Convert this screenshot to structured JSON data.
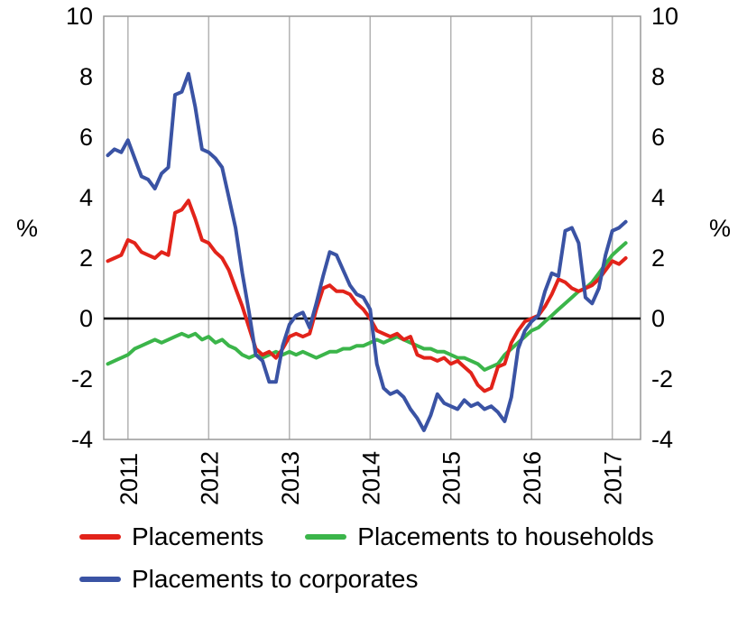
{
  "chart_data": {
    "type": "line",
    "title": "",
    "ylabel_left": "%",
    "ylabel_right": "%",
    "xlim": [
      2010.7,
      2017.35
    ],
    "ylim": [
      -4,
      10
    ],
    "y_ticks": [
      -4,
      -2,
      0,
      2,
      4,
      6,
      8,
      10
    ],
    "x_ticks": [
      2011,
      2012,
      2013,
      2014,
      2015,
      2016,
      2017
    ],
    "x_tick_labels": [
      "2011",
      "2012",
      "2013",
      "2014",
      "2015",
      "2016",
      "2017"
    ],
    "grid": "vertical-year-gridlines",
    "zero_line": true,
    "legend_position": "bottom-left",
    "x_start": 2010.75,
    "x_step": 0.0833333,
    "series": [
      {
        "name": "Placements",
        "color": "#e2231a",
        "values": [
          1.9,
          2.0,
          2.1,
          2.6,
          2.5,
          2.2,
          2.1,
          2.0,
          2.2,
          2.1,
          3.5,
          3.6,
          3.9,
          3.3,
          2.6,
          2.5,
          2.2,
          2.0,
          1.6,
          1.0,
          0.4,
          -0.3,
          -1.0,
          -1.2,
          -1.1,
          -1.3,
          -1.0,
          -0.6,
          -0.5,
          -0.6,
          -0.5,
          0.3,
          1.0,
          1.1,
          0.9,
          0.9,
          0.8,
          0.5,
          0.3,
          0.0,
          -0.4,
          -0.5,
          -0.6,
          -0.5,
          -0.7,
          -0.6,
          -1.2,
          -1.3,
          -1.3,
          -1.4,
          -1.3,
          -1.5,
          -1.4,
          -1.6,
          -1.8,
          -2.2,
          -2.4,
          -2.3,
          -1.6,
          -1.5,
          -0.8,
          -0.4,
          -0.1,
          0.0,
          0.1,
          0.4,
          0.8,
          1.3,
          1.2,
          1.0,
          0.9,
          1.0,
          1.1,
          1.3,
          1.6,
          1.9,
          1.8,
          2.0
        ]
      },
      {
        "name": "Placements to households",
        "color": "#3bb54a",
        "values": [
          -1.5,
          -1.4,
          -1.3,
          -1.2,
          -1.0,
          -0.9,
          -0.8,
          -0.7,
          -0.8,
          -0.7,
          -0.6,
          -0.5,
          -0.6,
          -0.5,
          -0.7,
          -0.6,
          -0.8,
          -0.7,
          -0.9,
          -1.0,
          -1.2,
          -1.3,
          -1.2,
          -1.3,
          -1.2,
          -1.1,
          -1.2,
          -1.1,
          -1.2,
          -1.1,
          -1.2,
          -1.3,
          -1.2,
          -1.1,
          -1.1,
          -1.0,
          -1.0,
          -0.9,
          -0.9,
          -0.8,
          -0.7,
          -0.8,
          -0.7,
          -0.6,
          -0.7,
          -0.8,
          -0.9,
          -1.0,
          -1.0,
          -1.1,
          -1.1,
          -1.2,
          -1.3,
          -1.3,
          -1.4,
          -1.5,
          -1.7,
          -1.6,
          -1.5,
          -1.2,
          -1.0,
          -0.8,
          -0.6,
          -0.4,
          -0.3,
          -0.1,
          0.1,
          0.3,
          0.5,
          0.7,
          0.9,
          1.0,
          1.2,
          1.5,
          1.8,
          2.1,
          2.3,
          2.5
        ]
      },
      {
        "name": "Placements to corporates",
        "color": "#3a53a4",
        "values": [
          5.4,
          5.6,
          5.5,
          5.9,
          5.3,
          4.7,
          4.6,
          4.3,
          4.8,
          5.0,
          7.4,
          7.5,
          8.1,
          7.0,
          5.6,
          5.5,
          5.3,
          5.0,
          4.0,
          3.0,
          1.5,
          0.2,
          -1.2,
          -1.4,
          -2.1,
          -2.1,
          -0.9,
          -0.2,
          0.1,
          0.2,
          -0.3,
          0.5,
          1.4,
          2.2,
          2.1,
          1.6,
          1.1,
          0.8,
          0.7,
          0.3,
          -1.5,
          -2.3,
          -2.5,
          -2.4,
          -2.6,
          -3.0,
          -3.3,
          -3.7,
          -3.2,
          -2.5,
          -2.8,
          -2.9,
          -3.0,
          -2.7,
          -2.9,
          -2.8,
          -3.0,
          -2.9,
          -3.1,
          -3.4,
          -2.6,
          -1.0,
          -0.4,
          -0.1,
          0.1,
          0.9,
          1.5,
          1.4,
          2.9,
          3.0,
          2.5,
          0.7,
          0.5,
          1.0,
          2.1,
          2.9,
          3.0,
          3.2
        ]
      }
    ],
    "style": {
      "grid_color": "#b3b3b3",
      "border_color": "#999999",
      "zero_line_color": "#000000",
      "line_width": 4
    }
  }
}
